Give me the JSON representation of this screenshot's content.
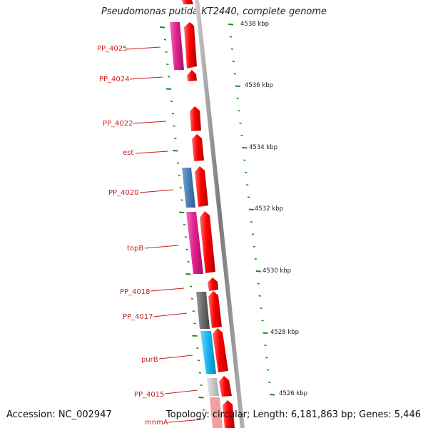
{
  "title": "Pseudomonas putida KT2440, complete genome",
  "accession": "Accession: NC_002947",
  "topology": "Topology: circular; Length: 6,181,863 bp; Genes: 5,446",
  "kbp_labels": [
    "4538 kbp",
    "4536 kbp",
    "4534 kbp",
    "4532 kbp",
    "4530 kbp",
    "4528 kbp",
    "4526 kbp"
  ],
  "gene_labels": [
    "PP_4025",
    "PP_4024",
    "PP_4022",
    "est",
    "PP_4020",
    "topB",
    "PP_4018",
    "PP_4017",
    "purB",
    "PP_4015",
    "mnmA"
  ],
  "colors": {
    "cds": "#ff0000",
    "pink": "#e3218f",
    "steel": "#4a7eb5",
    "gray": "#6b6b6b",
    "cyan": "#14b3ea",
    "lightgray": "#c8c8c8",
    "tick": "#1e8a1e",
    "label": "#c81e1e",
    "backbone": "#8c8c8c"
  }
}
